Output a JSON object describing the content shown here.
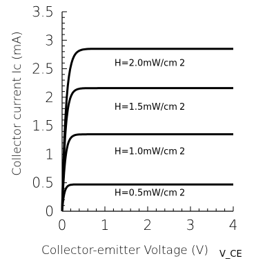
{
  "chart_data": {
    "type": "line",
    "title": "",
    "xlabel": "Collector-emitter Voltage (V)",
    "xlabel_overlay": "V_CE",
    "ylabel": "Collector current Ic (mA)",
    "xlim": [
      0,
      4
    ],
    "ylim": [
      0,
      3.5
    ],
    "x_ticks": [
      "0",
      "1",
      "2",
      "3",
      "4"
    ],
    "y_ticks": [
      "0",
      "0.5",
      "1",
      "1.5",
      "2",
      "2.5",
      "3",
      "3.5"
    ],
    "grid": false,
    "series": [
      {
        "name": "H=0.5mW/cm 2",
        "saturation_current": 0.47,
        "knee_voltage": 0.2,
        "label_y": 0.27
      },
      {
        "name": "H=1.0mW/cm 2",
        "saturation_current": 1.35,
        "knee_voltage": 0.28,
        "label_y": 1.0
      },
      {
        "name": "H=1.5mW/cm 2",
        "saturation_current": 2.16,
        "knee_voltage": 0.32,
        "label_y": 1.78
      },
      {
        "name": "H=2.0mW/cm 2",
        "saturation_current": 2.85,
        "knee_voltage": 0.38,
        "label_y": 2.55
      }
    ]
  }
}
